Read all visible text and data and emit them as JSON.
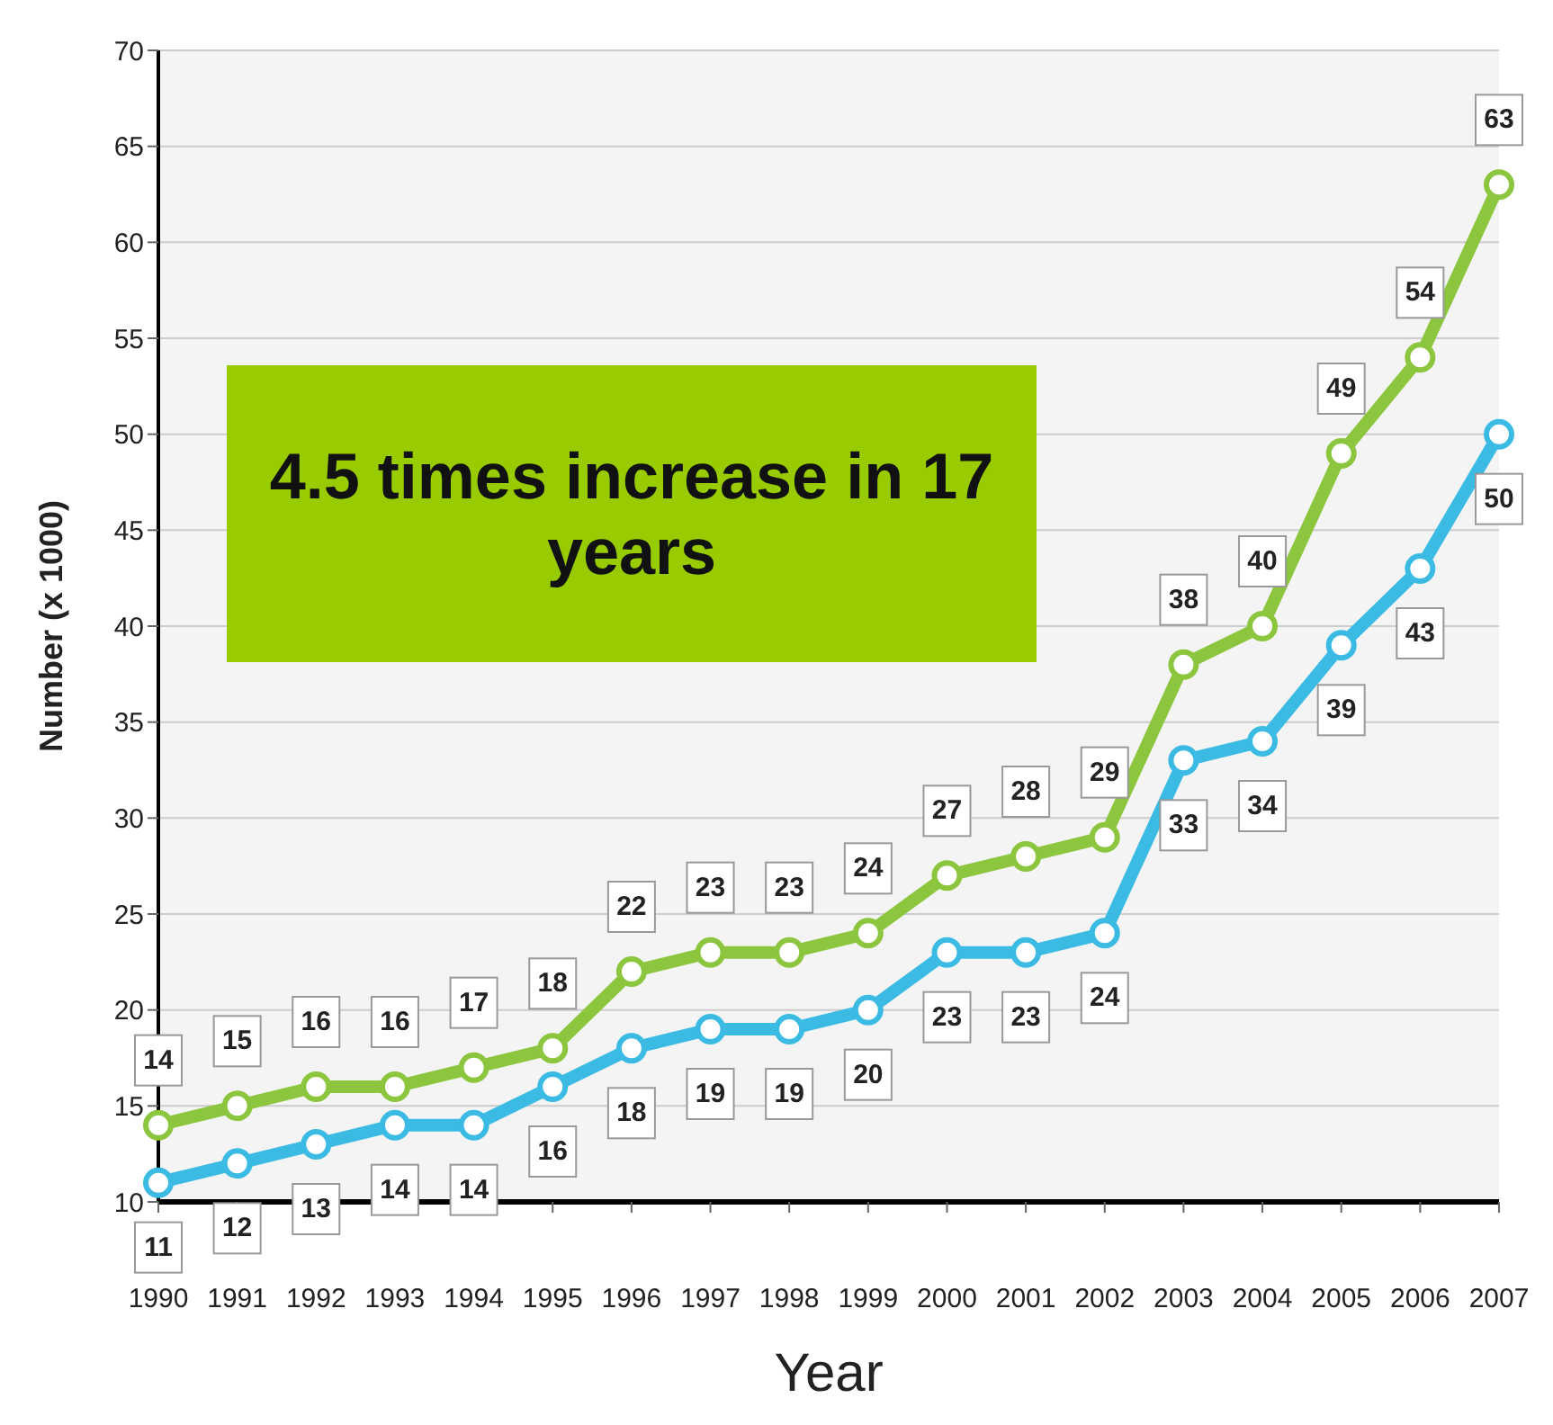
{
  "chart_data": {
    "type": "line",
    "xlabel": "Year",
    "ylabel": "Number (x 1000)",
    "categories": [
      "1990",
      "1991",
      "1992",
      "1993",
      "1994",
      "1995",
      "1996",
      "1997",
      "1998",
      "1999",
      "2000",
      "2001",
      "2002",
      "2003",
      "2004",
      "2005",
      "2006",
      "2007"
    ],
    "series": [
      {
        "color": "#8cc63f",
        "values": [
          14,
          15,
          16,
          16,
          17,
          18,
          22,
          23,
          23,
          24,
          27,
          28,
          29,
          38,
          40,
          49,
          54,
          63
        ]
      },
      {
        "color": "#3bbbe3",
        "values": [
          11,
          12,
          13,
          14,
          14,
          16,
          18,
          19,
          19,
          20,
          23,
          23,
          24,
          33,
          34,
          39,
          43,
          50
        ]
      }
    ],
    "ylim": [
      10,
      70
    ],
    "yticks": [
      10,
      15,
      20,
      25,
      30,
      35,
      40,
      45,
      50,
      55,
      60,
      65,
      70
    ],
    "grid": "y",
    "marker": "circle",
    "line_style": "solid",
    "data_labels": true,
    "annotations": [
      "4.5 times increase in 17 years"
    ]
  }
}
